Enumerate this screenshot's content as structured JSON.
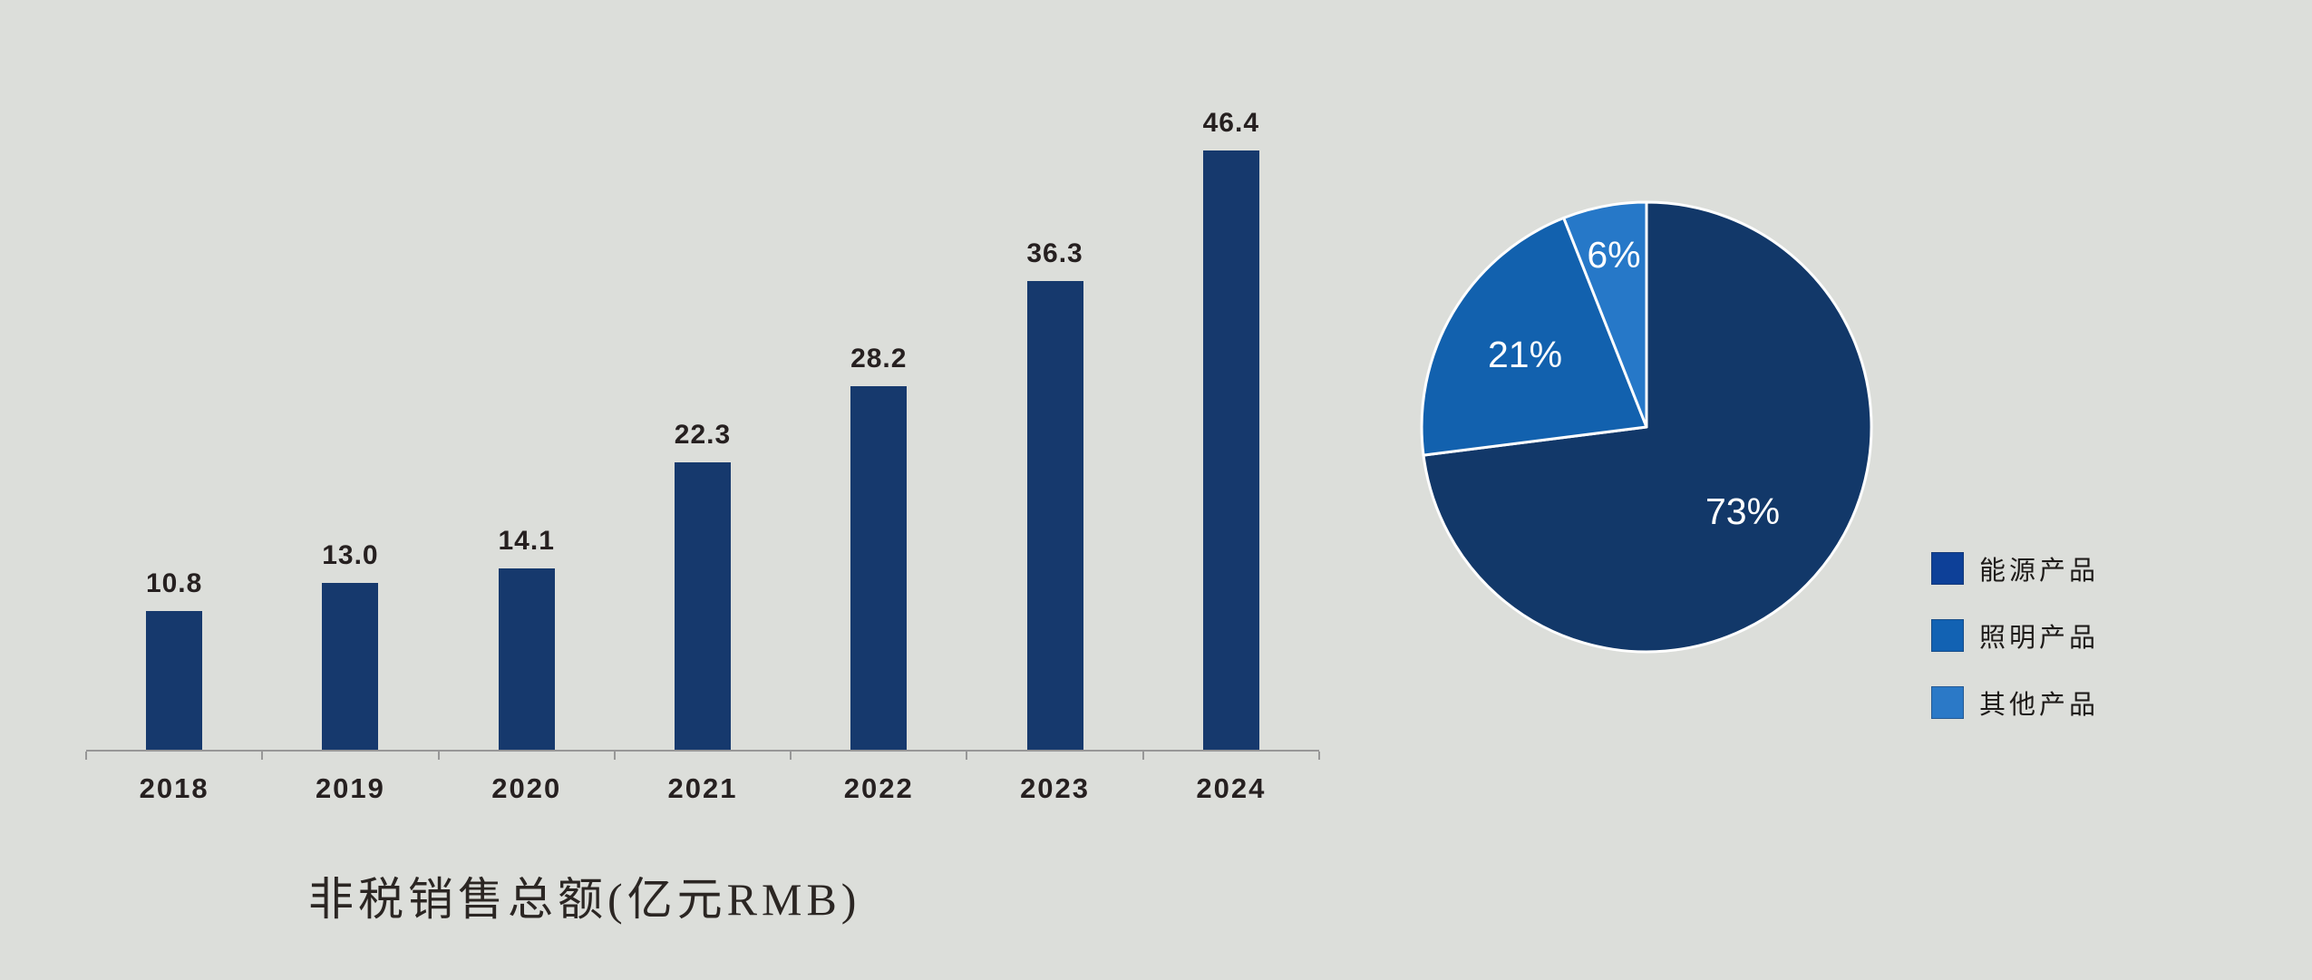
{
  "background_color": "#DCDEDA",
  "chart_data": [
    {
      "type": "bar",
      "title": "非税销售总额(亿元RMB)",
      "title_color": "#2B2623",
      "categories": [
        "2018",
        "2019",
        "2020",
        "2021",
        "2022",
        "2023",
        "2024"
      ],
      "values": [
        10.8,
        13.0,
        14.1,
        22.3,
        28.2,
        36.3,
        46.4
      ],
      "value_labels": [
        "10.8",
        "13.0",
        "14.1",
        "22.3",
        "28.2",
        "36.3",
        "46.4"
      ],
      "bar_color": "#16396D",
      "value_label_color": "#262020",
      "category_label_color": "#262020",
      "axis_color": "#979797",
      "xlabel": "",
      "ylabel": "",
      "ylim": [
        0,
        46.4
      ],
      "grid": false,
      "legend_position": "none"
    },
    {
      "type": "pie",
      "slices": [
        {
          "label": "能源产品",
          "percent": 73,
          "display": "73%",
          "color": "#123869"
        },
        {
          "label": "照明产品",
          "percent": 21,
          "display": "21%",
          "color": "#1261AE"
        },
        {
          "label": "其他产品",
          "percent": 6,
          "display": "6%",
          "color": "#2678C8"
        }
      ],
      "slice_label_color": "#FFFFFF",
      "slice_stroke_color": "#FFFFFF",
      "start_angle_deg": 0,
      "direction": "clockwise",
      "legend": {
        "position": "right",
        "text_color": "#1E1B19",
        "items": [
          {
            "label": "能源产品",
            "swatch_color": "#0D4098"
          },
          {
            "label": "照明产品",
            "swatch_color": "#1262B3"
          },
          {
            "label": "其他产品",
            "swatch_color": "#2B79C7"
          }
        ]
      }
    }
  ]
}
